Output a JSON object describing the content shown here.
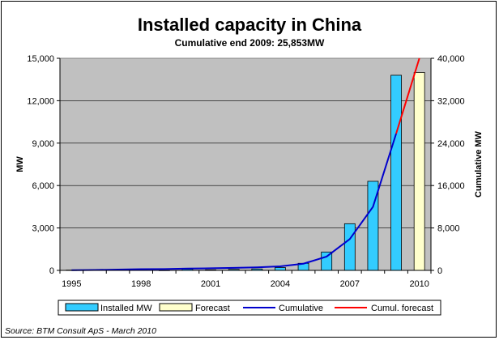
{
  "chart_data": {
    "type": "bar",
    "title": "Installed capacity in China",
    "subtitle": "Cumulative end 2009: 25,853MW",
    "x": [
      1995,
      1996,
      1997,
      1998,
      1999,
      2000,
      2001,
      2002,
      2003,
      2004,
      2005,
      2006,
      2007,
      2008,
      2009,
      2010
    ],
    "xticks": [
      "1995",
      "1998",
      "2001",
      "2004",
      "2007",
      "2010"
    ],
    "ylabel": "MW",
    "y2label": "Cumulative MW",
    "ylim": [
      0,
      15000
    ],
    "y2lim": [
      0,
      40000
    ],
    "yticks": [
      "0",
      "3,000",
      "6,000",
      "9,000",
      "12,000",
      "15,000"
    ],
    "y2ticks": [
      "0",
      "8,000",
      "16,000",
      "24,000",
      "32,000",
      "40,000"
    ],
    "grid": true,
    "legend_position": "bottom",
    "series": [
      {
        "name": "Installed MW",
        "kind": "bar",
        "axis": "left",
        "color": "#33ccff",
        "values": [
          20,
          40,
          60,
          80,
          10,
          80,
          40,
          70,
          100,
          200,
          500,
          1300,
          3300,
          6300,
          13800,
          null
        ]
      },
      {
        "name": "Forecast",
        "kind": "bar",
        "axis": "left",
        "color": "#ffffcc",
        "values": [
          null,
          null,
          null,
          null,
          null,
          null,
          null,
          null,
          null,
          null,
          null,
          null,
          null,
          null,
          null,
          14000
        ]
      },
      {
        "name": "Cumulative",
        "kind": "line",
        "axis": "right",
        "color": "#0000cc",
        "values": [
          40,
          80,
          150,
          230,
          250,
          350,
          400,
          470,
          570,
          760,
          1260,
          2600,
          5900,
          12000,
          25800,
          null
        ]
      },
      {
        "name": "Cumul. forecast",
        "kind": "line",
        "axis": "right",
        "color": "#ff0000",
        "values": [
          null,
          null,
          null,
          null,
          null,
          null,
          null,
          null,
          null,
          null,
          null,
          null,
          null,
          null,
          25800,
          40000
        ]
      }
    ],
    "source": "Source: BTM Consult ApS - March 2010"
  }
}
